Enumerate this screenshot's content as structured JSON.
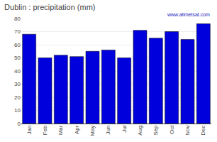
{
  "chart_data": {
    "type": "bar",
    "title": "Dublin : precipitation (mm)",
    "categories": [
      "Jan",
      "Feb",
      "Mar",
      "Apr",
      "May",
      "Jun",
      "Jul",
      "Aug",
      "Sep",
      "Oct",
      "Nov",
      "Dec"
    ],
    "values": [
      68,
      50,
      52,
      51,
      55,
      56,
      50,
      71,
      65,
      70,
      64,
      76
    ],
    "color": "#0000DD",
    "ylim": [
      0,
      80
    ],
    "yticks": [
      0,
      10,
      20,
      30,
      40,
      50,
      60,
      70,
      80
    ],
    "grid": true,
    "annotations": [
      "www.allmetsat.com"
    ]
  }
}
